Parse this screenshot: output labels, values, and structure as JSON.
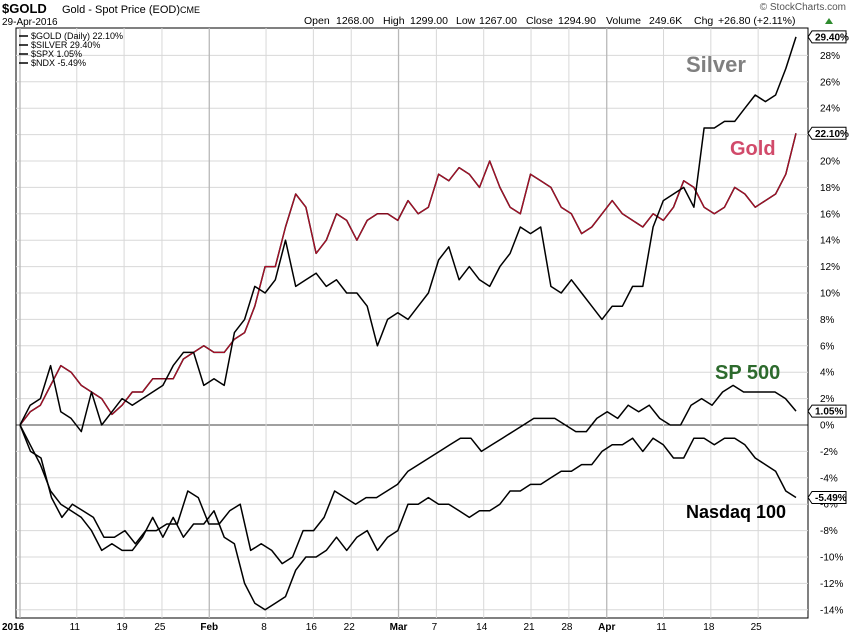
{
  "header": {
    "symbol": "$GOLD",
    "name": "Gold - Spot Price (EOD)",
    "exchange": "CME",
    "date": "29-Apr-2016",
    "open_label": "Open",
    "open": "1268.00",
    "high_label": "High",
    "high": "1299.00",
    "low_label": "Low",
    "low": "1267.00",
    "close_label": "Close",
    "close": "1294.90",
    "volume_label": "Volume",
    "volume": "249.6K",
    "chg_label": "Chg",
    "chg": "+26.80 (+2.11%)",
    "watermark": "© StockCharts.com"
  },
  "colors": {
    "gold": "#c8102e",
    "silver_label": "#808080",
    "gold_label": "#d14a6a",
    "sp500_label": "#2d6a2d",
    "nasdaq_label": "#000000",
    "line": "#000000",
    "grid": "#d8d8d8"
  },
  "chart_data": {
    "type": "line",
    "ylim": [
      -14.5,
      30
    ],
    "yticks": [
      -14,
      -12,
      -10,
      -8,
      -6,
      -4,
      -2,
      0,
      2,
      4,
      6,
      8,
      10,
      12,
      14,
      16,
      18,
      20,
      22,
      24,
      26,
      28
    ],
    "ytick_labels": [
      "-14%",
      "-12%",
      "-10%",
      "-8%",
      "-6%",
      "-4%",
      "-2%",
      "0%",
      "2%",
      "4%",
      "6%",
      "8%",
      "10%",
      "12%",
      "14%",
      "16%",
      "18%",
      "20%",
      "22%",
      "24%",
      "26%",
      "28%"
    ],
    "xlim": [
      0,
      82
    ],
    "xticks": [
      {
        "label": "2016",
        "x": 0,
        "bold": true,
        "major": true
      },
      {
        "label": "11",
        "x": 6
      },
      {
        "label": "19",
        "x": 11
      },
      {
        "label": "25",
        "x": 15
      },
      {
        "label": "Feb",
        "x": 20,
        "bold": true,
        "major": true
      },
      {
        "label": "8",
        "x": 26
      },
      {
        "label": "16",
        "x": 31
      },
      {
        "label": "22",
        "x": 35
      },
      {
        "label": "Mar",
        "x": 40,
        "bold": true,
        "major": true
      },
      {
        "label": "7",
        "x": 44
      },
      {
        "label": "14",
        "x": 49
      },
      {
        "label": "21",
        "x": 54
      },
      {
        "label": "28",
        "x": 58
      },
      {
        "label": "Apr",
        "x": 62,
        "bold": true,
        "major": true
      },
      {
        "label": "11",
        "x": 68
      },
      {
        "label": "18",
        "x": 73
      },
      {
        "label": "25",
        "x": 78
      }
    ],
    "series": [
      {
        "name": "$GOLD (Daily) 22.10%",
        "last_label": "22.10%",
        "values": [
          0,
          1,
          1.5,
          3,
          4.5,
          4,
          3,
          2.5,
          2,
          0.8,
          1.5,
          2.5,
          2.5,
          3.5,
          3.5,
          3.5,
          5,
          5.5,
          6,
          5.5,
          5.5,
          6.5,
          7,
          9,
          12,
          12,
          15,
          17.5,
          16.5,
          13,
          14,
          16,
          15.5,
          14,
          15.5,
          16,
          16,
          15.5,
          17,
          16,
          16.5,
          19,
          18.5,
          19.5,
          19,
          18,
          20,
          18,
          16.5,
          16,
          19,
          18.5,
          18,
          16.5,
          16,
          14.5,
          15,
          16,
          17,
          16,
          15.5,
          15,
          16,
          15.5,
          16.5,
          18.5,
          18,
          16.5,
          16,
          16.5,
          18,
          17.5,
          16.5,
          17,
          17.5,
          19,
          22.1
        ]
      },
      {
        "name": "$SILVER 29.40%",
        "last_label": "29.40%",
        "values": [
          0,
          1.5,
          2,
          4.5,
          1,
          0.5,
          -0.5,
          2.5,
          0,
          1,
          2,
          1.5,
          2,
          2.5,
          3,
          4.5,
          5.5,
          5.5,
          3,
          3.5,
          3,
          7,
          8,
          10.5,
          10,
          11,
          14,
          10.5,
          11,
          11.5,
          10.5,
          11,
          10,
          10,
          9,
          6,
          8,
          8.5,
          8,
          9,
          10,
          12.5,
          13.5,
          11,
          12,
          11,
          10.5,
          12,
          13,
          15,
          14.5,
          15,
          10.5,
          10,
          11,
          10,
          9,
          8,
          9,
          9,
          10.5,
          10.5,
          15,
          17,
          17.5,
          18,
          16.5,
          22.5,
          22.5,
          23,
          23,
          24,
          25,
          24.5,
          25,
          27,
          29.4
        ]
      },
      {
        "name": "$SPX 1.05%",
        "last_label": "1.05%",
        "values": [
          0,
          -2,
          -2.5,
          -5.5,
          -7,
          -6,
          -6.5,
          -7,
          -8.5,
          -8.5,
          -8,
          -9,
          -8,
          -8,
          -7.5,
          -7.5,
          -5,
          -5.5,
          -7.5,
          -7.5,
          -6.5,
          -6,
          -9.5,
          -9,
          -9.5,
          -10.5,
          -10,
          -8,
          -8,
          -7,
          -5,
          -5.5,
          -6,
          -5.5,
          -5.5,
          -5,
          -4.5,
          -3.5,
          -3,
          -2.5,
          -2,
          -1.5,
          -1,
          -1,
          -2,
          -1.5,
          -1,
          -0.5,
          0,
          0.5,
          0.5,
          0.5,
          0,
          -0.5,
          -0.5,
          0.5,
          1,
          0.5,
          1.5,
          1,
          1.5,
          0.5,
          0,
          0,
          1.5,
          2,
          1.5,
          2.5,
          3,
          2.5,
          2.5,
          2.5,
          2.5,
          2,
          1.05
        ]
      },
      {
        "name": "$NDX -5.49%",
        "last_label": "-5.49%",
        "values": [
          0,
          -1.5,
          -3,
          -5,
          -6,
          -6.5,
          -7,
          -8,
          -9.5,
          -9,
          -9.5,
          -9.5,
          -8.5,
          -7,
          -8.5,
          -7,
          -8.5,
          -7.5,
          -7.5,
          -6.5,
          -8.5,
          -9,
          -12,
          -13.5,
          -14,
          -13.5,
          -13,
          -11,
          -10,
          -10,
          -9.5,
          -8.5,
          -9.5,
          -8.5,
          -8,
          -9.5,
          -8.5,
          -8,
          -6,
          -6,
          -5.5,
          -6,
          -6,
          -6.5,
          -7,
          -6.5,
          -6.5,
          -6,
          -5,
          -5,
          -4.5,
          -4.5,
          -4,
          -3.5,
          -3.5,
          -3,
          -3,
          -2,
          -1.5,
          -1.5,
          -1,
          -2,
          -1,
          -1.5,
          -2.5,
          -2.5,
          -1,
          -1,
          -1.5,
          -1,
          -1,
          -1.5,
          -2.5,
          -3,
          -3.5,
          -5,
          -5.49
        ]
      }
    ],
    "legend": [
      "$GOLD (Daily) 22.10%",
      "$SILVER 29.40%",
      "$SPX 1.05%",
      "$NDX -5.49%"
    ],
    "legend_position": "top-left",
    "annotations": [
      {
        "text": "Silver",
        "series": "$SILVER 29.40%"
      },
      {
        "text": "Gold",
        "series": "$GOLD (Daily) 22.10%"
      },
      {
        "text": "SP 500",
        "series": "$SPX 1.05%"
      },
      {
        "text": "Nasdaq 100",
        "series": "$NDX -5.49%"
      }
    ],
    "grid": true
  }
}
